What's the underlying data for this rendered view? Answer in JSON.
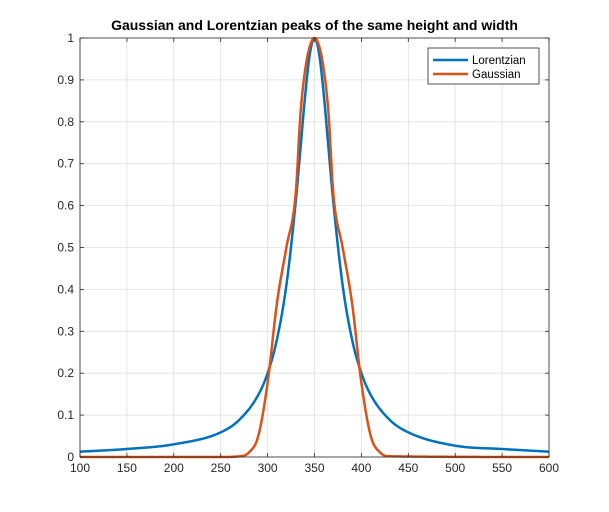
{
  "chart_data": {
    "type": "line",
    "title": "Gaussian and Lorentzian peaks of the same height and width",
    "xlabel": "",
    "ylabel": "",
    "xlim": [
      100,
      600
    ],
    "ylim": [
      0,
      1
    ],
    "xticks": [
      100,
      150,
      200,
      250,
      300,
      350,
      400,
      450,
      500,
      550,
      600
    ],
    "yticks": [
      0,
      0.1,
      0.2,
      0.3,
      0.4,
      0.5,
      0.6,
      0.7,
      0.8,
      0.9,
      1
    ],
    "xtick_labels": [
      "100",
      "150",
      "200",
      "250",
      "300",
      "350",
      "400",
      "450",
      "500",
      "550",
      "600"
    ],
    "ytick_labels": [
      "0",
      "0.1",
      "0.2",
      "0.3",
      "0.4",
      "0.5",
      "0.6",
      "0.7",
      "0.8",
      "0.9",
      "1"
    ],
    "grid": true,
    "legend_position": "top-right",
    "series": [
      {
        "name": "Lorentzian",
        "color": "#0072BD",
        "x": [
          100,
          150,
          200,
          250,
          270,
          290,
          300,
          310,
          320,
          330,
          335,
          340,
          345,
          350,
          355,
          360,
          365,
          370,
          380,
          390,
          400,
          410,
          430,
          450,
          500,
          550,
          600
        ],
        "y": [
          0.0127,
          0.0191,
          0.0303,
          0.0588,
          0.089,
          0.1479,
          0.2,
          0.2809,
          0.4098,
          0.6098,
          0.7353,
          0.8621,
          0.9615,
          1.0,
          0.9615,
          0.8621,
          0.7353,
          0.6098,
          0.4098,
          0.2809,
          0.2,
          0.1479,
          0.089,
          0.0588,
          0.027,
          0.0191,
          0.0127
        ]
      },
      {
        "name": "Gaussian",
        "color": "#D95319",
        "x": [
          100,
          250,
          270,
          280,
          290,
          300,
          310,
          320,
          330,
          335,
          340,
          345,
          350,
          355,
          360,
          365,
          370,
          380,
          390,
          400,
          410,
          420,
          430,
          600
        ],
        "y": [
          0.0,
          0.0,
          0.0017,
          0.0106,
          0.0498,
          0.1768,
          0.3679,
          0.5,
          0.6294,
          0.818,
          0.9231,
          0.9802,
          1.0,
          0.9802,
          0.9231,
          0.818,
          0.6294,
          0.5,
          0.3679,
          0.1768,
          0.0498,
          0.0106,
          0.0017,
          0.0
        ]
      }
    ]
  }
}
